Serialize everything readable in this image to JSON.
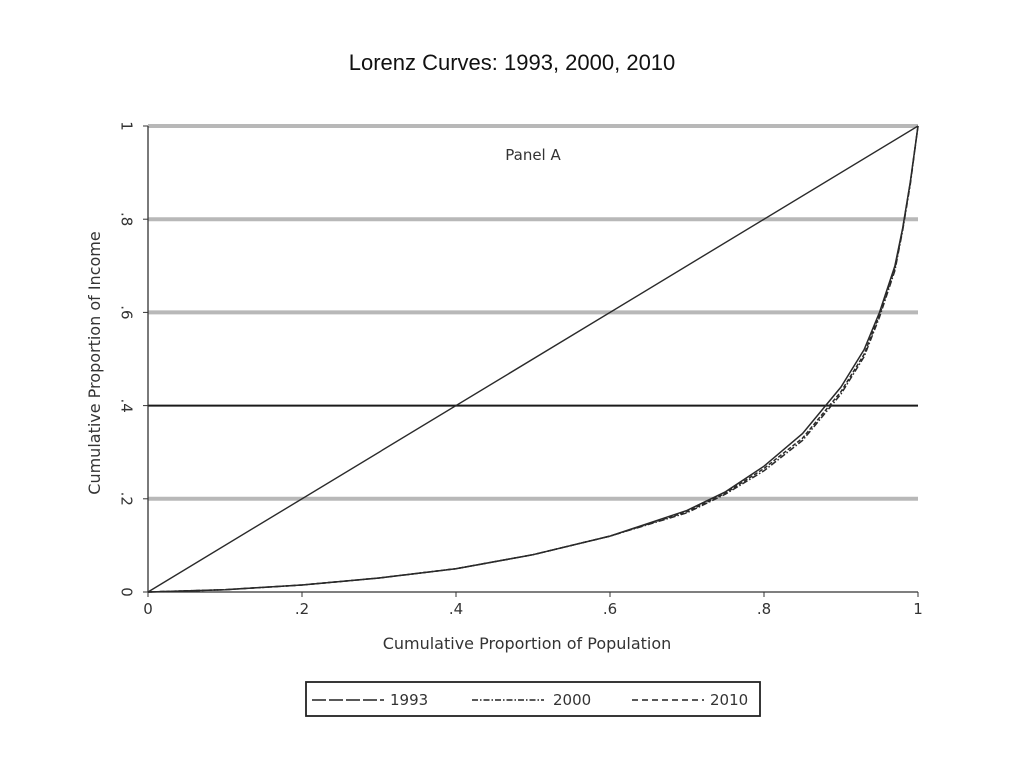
{
  "slide": {
    "title": "Lorenz Curves: 1993, 2000, 2010"
  },
  "chart_data": {
    "type": "line",
    "panel_label": "Panel A",
    "xlabel": "Cumulative Proportion of Population",
    "ylabel": "Cumulative Proportion of Income",
    "xlim": [
      0,
      1
    ],
    "ylim": [
      0,
      1
    ],
    "x_ticks": [
      {
        "value": 0,
        "label": "0"
      },
      {
        "value": 0.2,
        "label": ".2"
      },
      {
        "value": 0.4,
        "label": ".4"
      },
      {
        "value": 0.6,
        "label": ".6"
      },
      {
        "value": 0.8,
        "label": ".8"
      },
      {
        "value": 1,
        "label": "1"
      }
    ],
    "y_ticks": [
      {
        "value": 0,
        "label": "0"
      },
      {
        "value": 0.2,
        "label": ".2"
      },
      {
        "value": 0.4,
        "label": ".4"
      },
      {
        "value": 0.6,
        "label": ".6"
      },
      {
        "value": 0.8,
        "label": ".8"
      },
      {
        "value": 1,
        "label": "1"
      }
    ],
    "horizontal_gridlines": [
      0.2,
      0.4,
      0.6,
      0.8,
      1.0
    ],
    "emphasized_gridline": 0.4,
    "equality_line": {
      "x": [
        0,
        1
      ],
      "y": [
        0,
        1
      ]
    },
    "legend_position": "bottom",
    "series": [
      {
        "name": "1993",
        "dash": "long-dash",
        "x": [
          0,
          0.1,
          0.2,
          0.3,
          0.4,
          0.5,
          0.6,
          0.7,
          0.75,
          0.8,
          0.85,
          0.9,
          0.93,
          0.95,
          0.97,
          0.98,
          0.99,
          1.0
        ],
        "y": [
          0,
          0.005,
          0.015,
          0.03,
          0.05,
          0.08,
          0.12,
          0.175,
          0.215,
          0.27,
          0.34,
          0.44,
          0.52,
          0.6,
          0.7,
          0.78,
          0.88,
          1.0
        ]
      },
      {
        "name": "2000",
        "dash": "dash-dot",
        "x": [
          0,
          0.1,
          0.2,
          0.3,
          0.4,
          0.5,
          0.6,
          0.7,
          0.75,
          0.8,
          0.85,
          0.9,
          0.93,
          0.95,
          0.97,
          0.98,
          0.99,
          1.0
        ],
        "y": [
          0,
          0.005,
          0.015,
          0.03,
          0.05,
          0.08,
          0.12,
          0.17,
          0.21,
          0.26,
          0.325,
          0.425,
          0.505,
          0.59,
          0.69,
          0.775,
          0.875,
          1.0
        ]
      },
      {
        "name": "2010",
        "dash": "short-dash",
        "x": [
          0,
          0.1,
          0.2,
          0.3,
          0.4,
          0.5,
          0.6,
          0.7,
          0.75,
          0.8,
          0.85,
          0.9,
          0.93,
          0.95,
          0.97,
          0.98,
          0.99,
          1.0
        ],
        "y": [
          0,
          0.005,
          0.015,
          0.03,
          0.05,
          0.08,
          0.12,
          0.172,
          0.212,
          0.265,
          0.33,
          0.43,
          0.51,
          0.595,
          0.695,
          0.778,
          0.878,
          1.0
        ]
      }
    ]
  },
  "colors": {
    "gridline": "#b8b8b8",
    "emphasized_gridline": "#1a1a1a",
    "axis": "#333333",
    "curve": "#2a2a2a"
  }
}
